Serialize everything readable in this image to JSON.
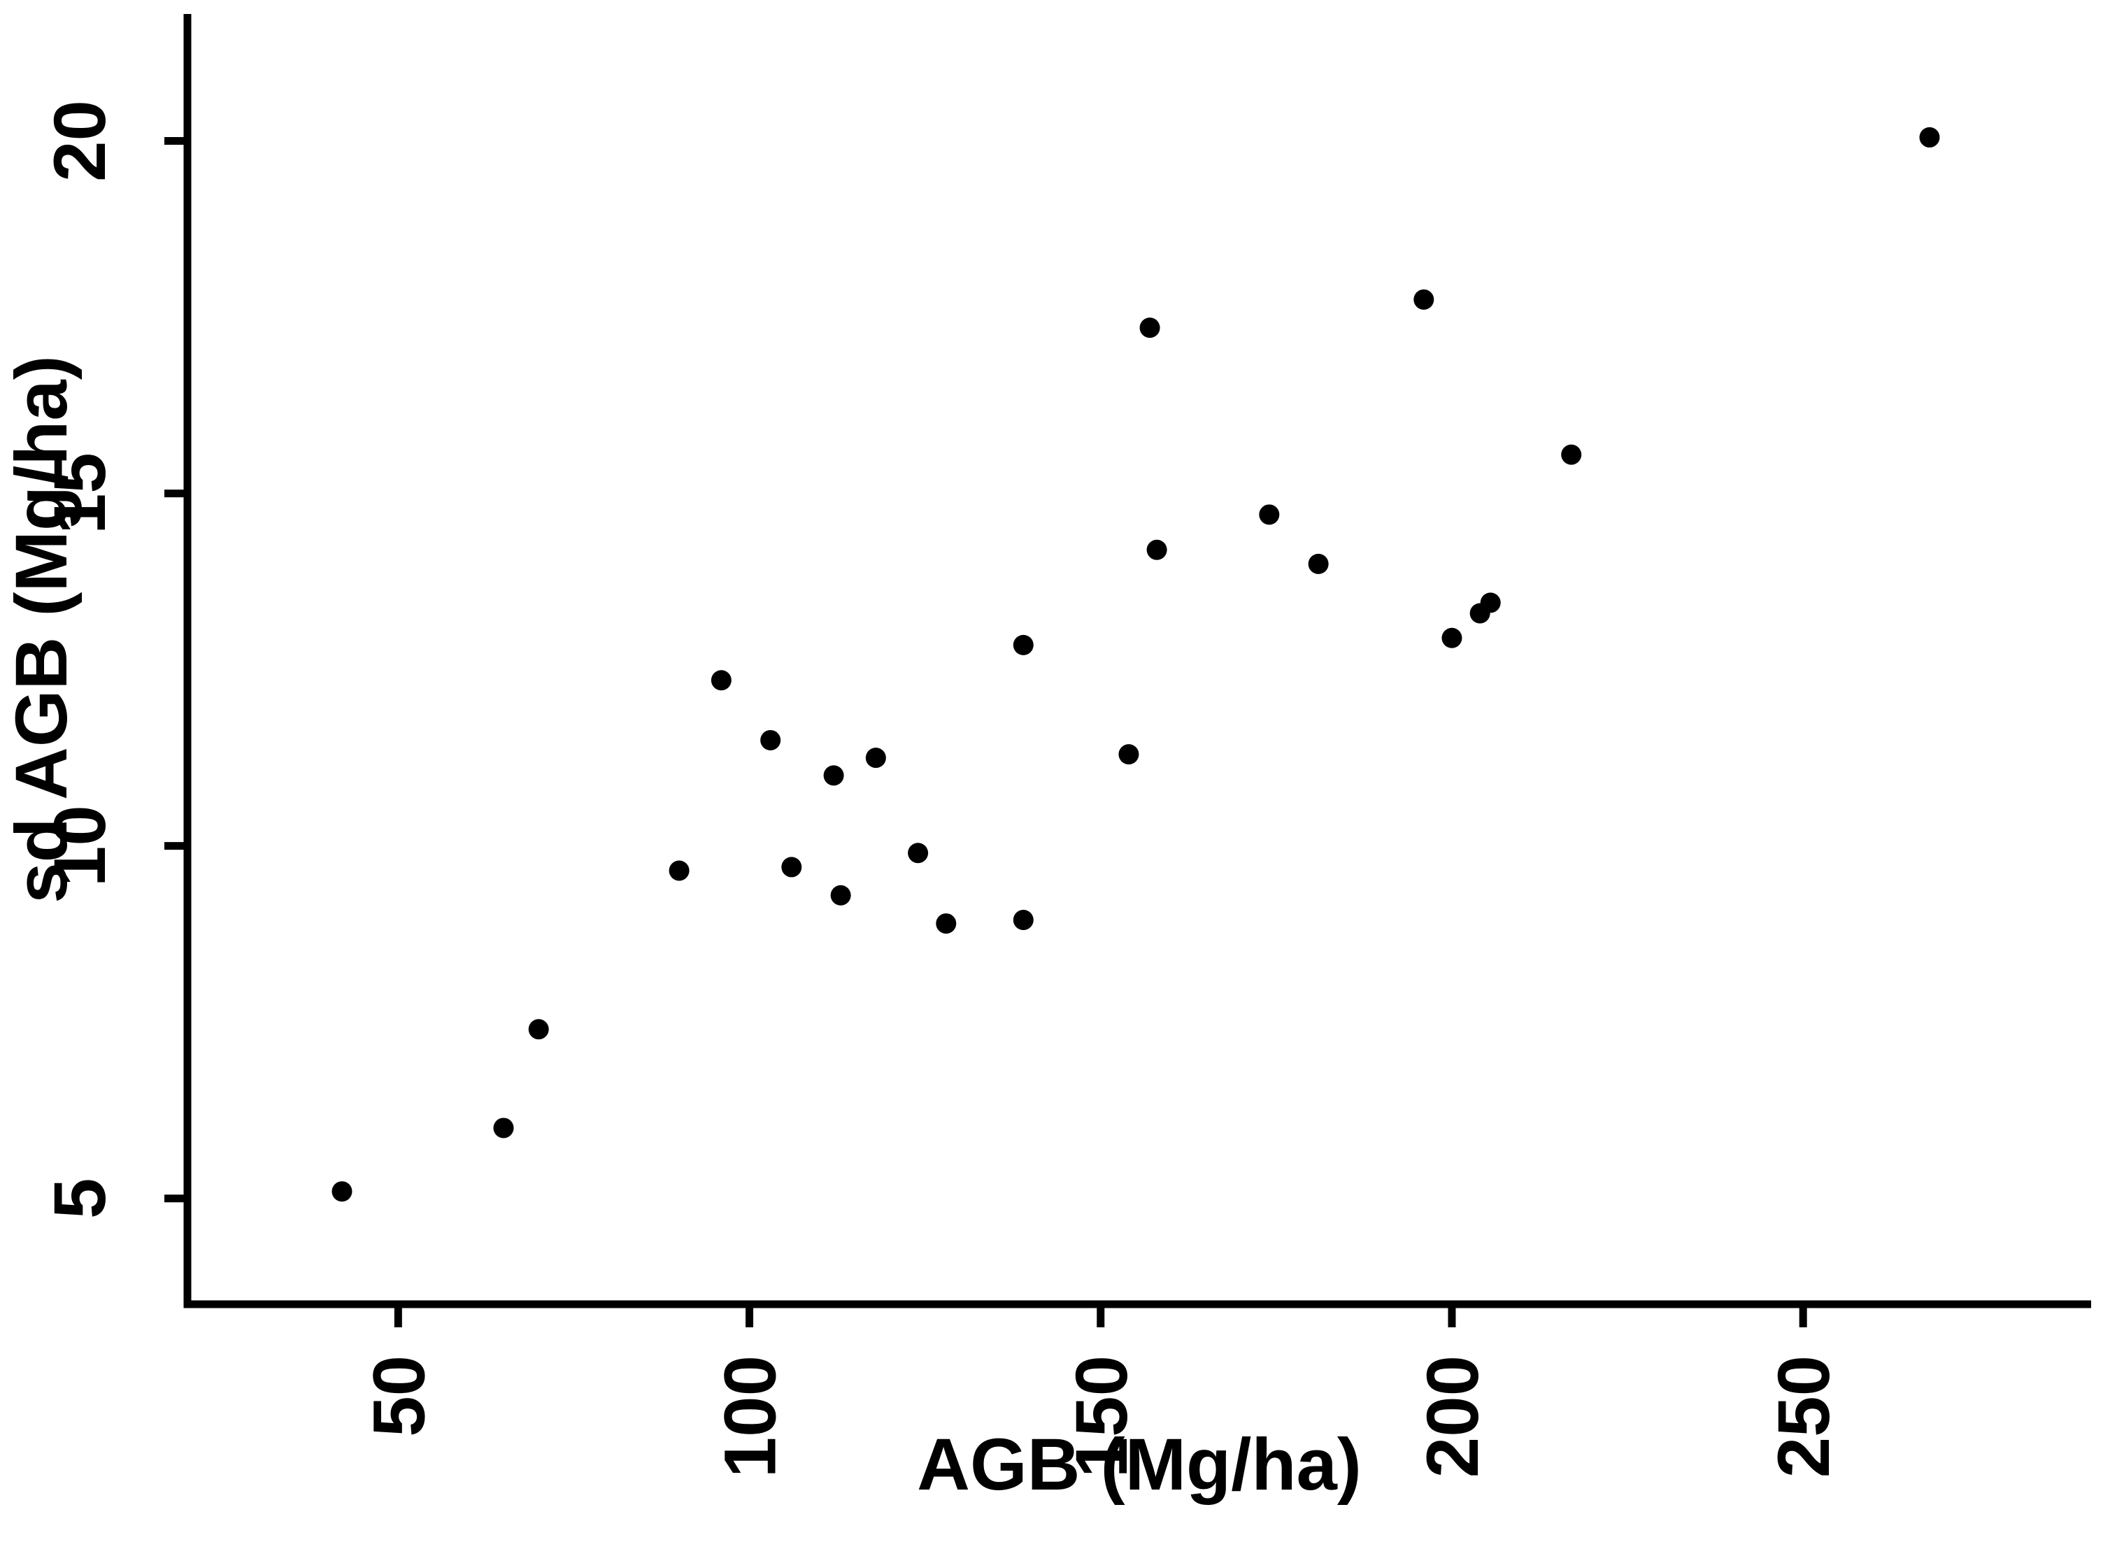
{
  "chart_data": {
    "type": "scatter",
    "title": "",
    "xlabel": "AGB (Mg/ha)",
    "ylabel": "sd AGB (Mg/ha)",
    "x_ticks": [
      50,
      100,
      150,
      200,
      250
    ],
    "y_ticks": [
      5,
      10,
      15,
      20
    ],
    "xlim": [
      20,
      291
    ],
    "ylim": [
      3.5,
      21.8
    ],
    "grid": "off",
    "legend": "none",
    "background_color": "#ffffff",
    "axis_color": "#000000",
    "marker_color": "#000000",
    "marker_shape": "filled-circle",
    "points": [
      {
        "x": 42,
        "y": 5.1
      },
      {
        "x": 65,
        "y": 6.0
      },
      {
        "x": 70,
        "y": 7.4
      },
      {
        "x": 90,
        "y": 9.65
      },
      {
        "x": 96,
        "y": 12.35
      },
      {
        "x": 103,
        "y": 11.5
      },
      {
        "x": 106,
        "y": 9.7
      },
      {
        "x": 112,
        "y": 11.0
      },
      {
        "x": 113,
        "y": 9.3
      },
      {
        "x": 118,
        "y": 11.25
      },
      {
        "x": 124,
        "y": 9.9
      },
      {
        "x": 128,
        "y": 8.9
      },
      {
        "x": 139,
        "y": 12.85
      },
      {
        "x": 139,
        "y": 8.95
      },
      {
        "x": 154,
        "y": 11.3
      },
      {
        "x": 157,
        "y": 17.35
      },
      {
        "x": 158,
        "y": 14.2
      },
      {
        "x": 174,
        "y": 14.7
      },
      {
        "x": 181,
        "y": 14.0
      },
      {
        "x": 196,
        "y": 17.75
      },
      {
        "x": 200,
        "y": 12.95
      },
      {
        "x": 204,
        "y": 13.3
      },
      {
        "x": 205.5,
        "y": 13.45
      },
      {
        "x": 217,
        "y": 15.55
      },
      {
        "x": 268,
        "y": 20.05
      }
    ]
  }
}
